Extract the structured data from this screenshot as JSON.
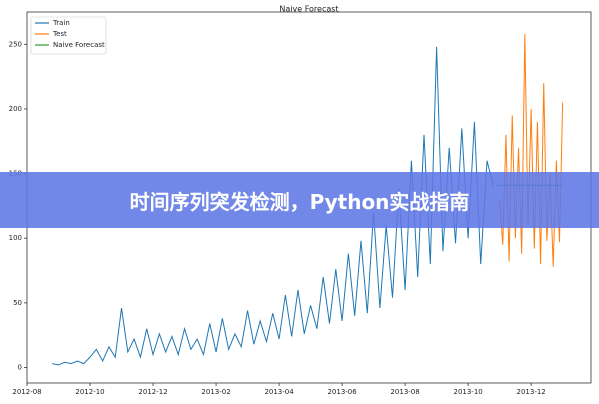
{
  "chart_data": {
    "type": "line",
    "title": "Naive Forecast",
    "xlim": [
      0,
      17.9
    ],
    "xticks": [
      {
        "value": 0,
        "label": "2012-08"
      },
      {
        "value": 2,
        "label": "2012-10"
      },
      {
        "value": 4,
        "label": "2012-12"
      },
      {
        "value": 6,
        "label": "2013-02"
      },
      {
        "value": 8,
        "label": "2013-04"
      },
      {
        "value": 10,
        "label": "2013-06"
      },
      {
        "value": 12,
        "label": "2013-08"
      },
      {
        "value": 14,
        "label": "2013-10"
      },
      {
        "value": 16,
        "label": "2013-12"
      }
    ],
    "ylim": [
      -12,
      275
    ],
    "yticks": [
      0,
      50,
      100,
      150,
      200,
      250
    ],
    "legend": "upper left",
    "series": [
      {
        "name": "Train",
        "color": "#1f77b4",
        "x": [
          0.8,
          1.0,
          1.2,
          1.4,
          1.6,
          1.8,
          2.0,
          2.2,
          2.4,
          2.6,
          2.8,
          3.0,
          3.2,
          3.4,
          3.6,
          3.8,
          4.0,
          4.2,
          4.4,
          4.6,
          4.8,
          5.0,
          5.2,
          5.4,
          5.6,
          5.8,
          6.0,
          6.2,
          6.4,
          6.6,
          6.8,
          7.0,
          7.2,
          7.4,
          7.6,
          7.8,
          8.0,
          8.2,
          8.4,
          8.6,
          8.8,
          9.0,
          9.2,
          9.4,
          9.6,
          9.8,
          10.0,
          10.2,
          10.4,
          10.6,
          10.8,
          11.0,
          11.2,
          11.4,
          11.6,
          11.8,
          12.0,
          12.2,
          12.4,
          12.6,
          12.8,
          13.0,
          13.2,
          13.4,
          13.6,
          13.8,
          14.0,
          14.2,
          14.4,
          14.6,
          14.8
        ],
        "values": [
          3,
          2,
          4,
          3,
          5,
          3,
          8,
          14,
          5,
          16,
          8,
          46,
          12,
          22,
          8,
          30,
          10,
          26,
          12,
          24,
          10,
          30,
          14,
          22,
          10,
          34,
          12,
          38,
          14,
          26,
          16,
          44,
          18,
          36,
          20,
          42,
          22,
          56,
          24,
          60,
          26,
          48,
          30,
          70,
          34,
          76,
          36,
          88,
          40,
          98,
          42,
          120,
          46,
          110,
          54,
          138,
          60,
          160,
          70,
          180,
          80,
          248,
          90,
          170,
          96,
          185,
          100,
          190,
          80,
          160,
          140
        ]
      },
      {
        "name": "Test",
        "color": "#ff7f0e",
        "x": [
          15.0,
          15.1,
          15.2,
          15.3,
          15.4,
          15.5,
          15.6,
          15.7,
          15.8,
          15.9,
          16.0,
          16.1,
          16.2,
          16.3,
          16.4,
          16.5,
          16.6,
          16.7,
          16.8,
          16.9,
          17.0
        ],
        "values": [
          130,
          95,
          180,
          82,
          195,
          100,
          170,
          88,
          258,
          110,
          200,
          92,
          190,
          80,
          220,
          98,
          150,
          78,
          160,
          97,
          205
        ]
      },
      {
        "name": "Naive Forecast",
        "color": "#2ca02c",
        "x": [
          14.9,
          17.0
        ],
        "values": [
          141,
          141
        ]
      }
    ]
  },
  "banner": {
    "text": "时间序列突发检测，Python实战指南"
  }
}
